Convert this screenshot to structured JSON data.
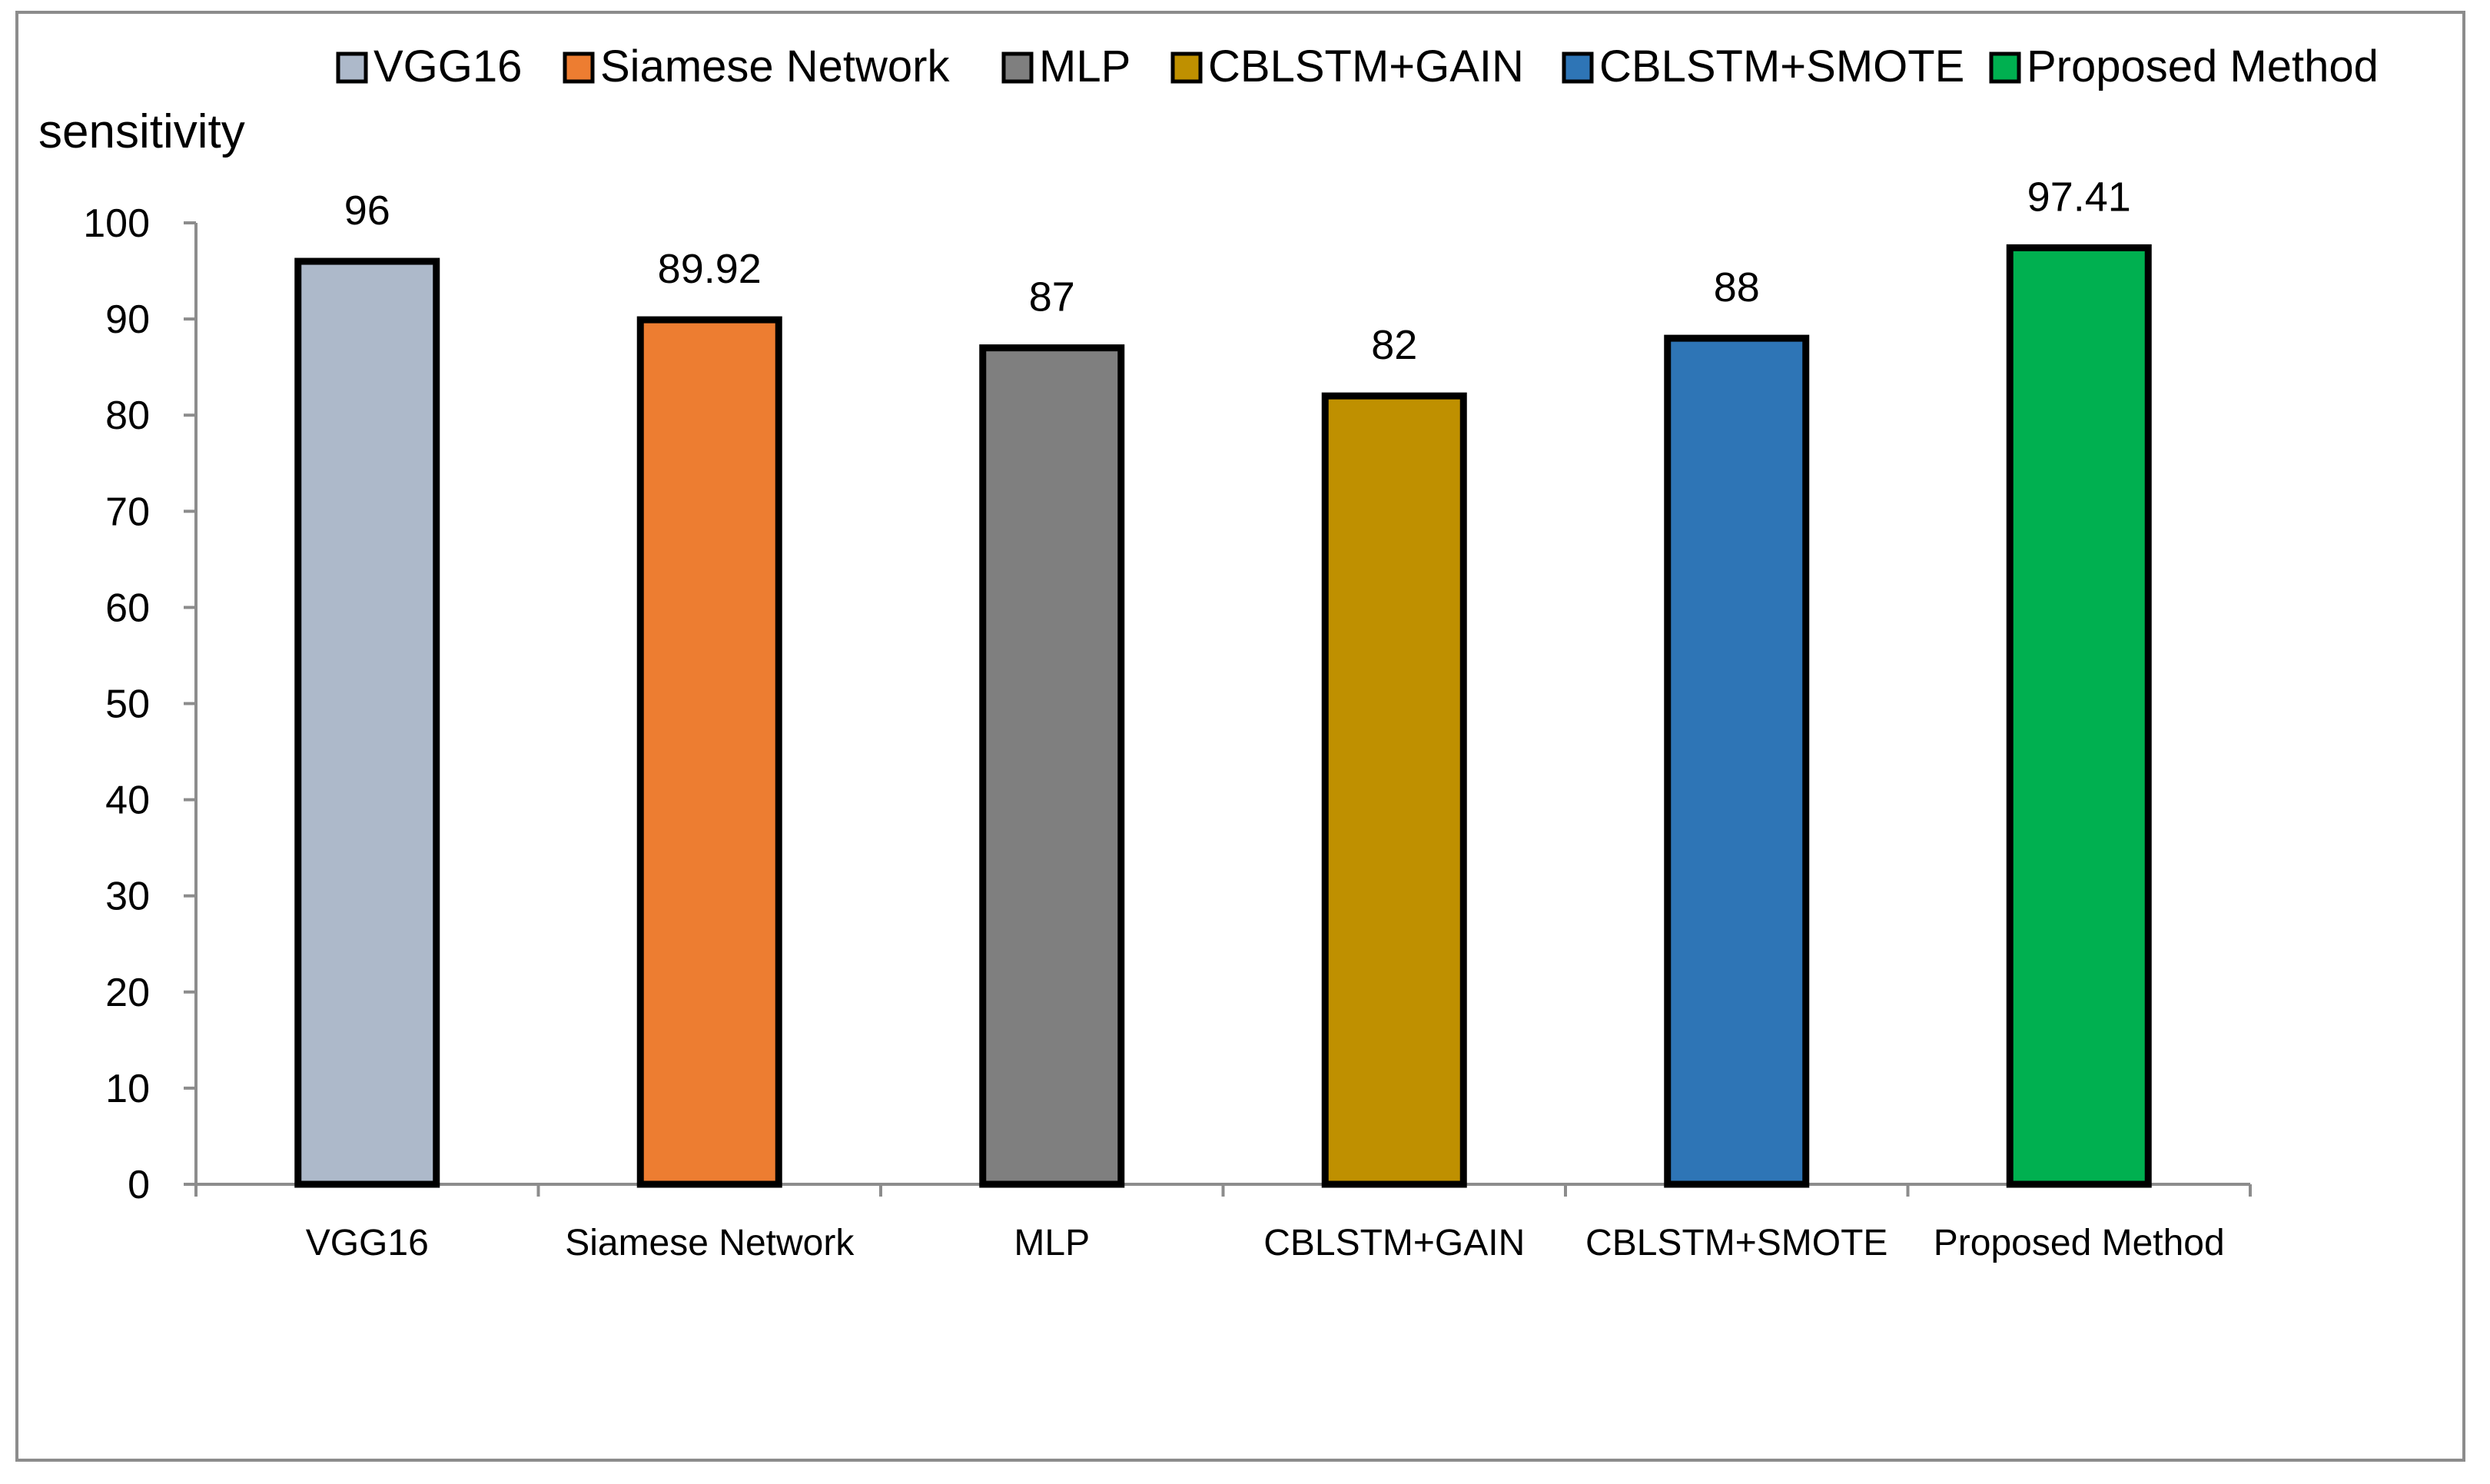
{
  "chart_data": {
    "type": "bar",
    "ylabel": "sensitivity",
    "categories": [
      "VGG16",
      "Siamese Network",
      "MLP",
      "CBLSTM+GAIN",
      "CBLSTM+SMOTE",
      "Proposed Method"
    ],
    "values": [
      96,
      89.92,
      87,
      82,
      88,
      97.41
    ],
    "value_labels": [
      "96",
      "89.92",
      "87",
      "82",
      "88",
      "97.41"
    ],
    "colors": [
      "#adb9ca",
      "#ed7d31",
      "#7f7f7f",
      "#bf9000",
      "#2e75b6",
      "#00b050"
    ],
    "ylim": [
      0,
      100
    ],
    "yticks": [
      0,
      10,
      20,
      30,
      40,
      50,
      60,
      70,
      80,
      90,
      100
    ],
    "grid": false,
    "legend_position": "top",
    "legend": [
      "VGG16",
      "Siamese Network",
      "MLP",
      "CBLSTM+GAIN",
      "CBLSTM+SMOTE",
      "Proposed Method"
    ]
  }
}
